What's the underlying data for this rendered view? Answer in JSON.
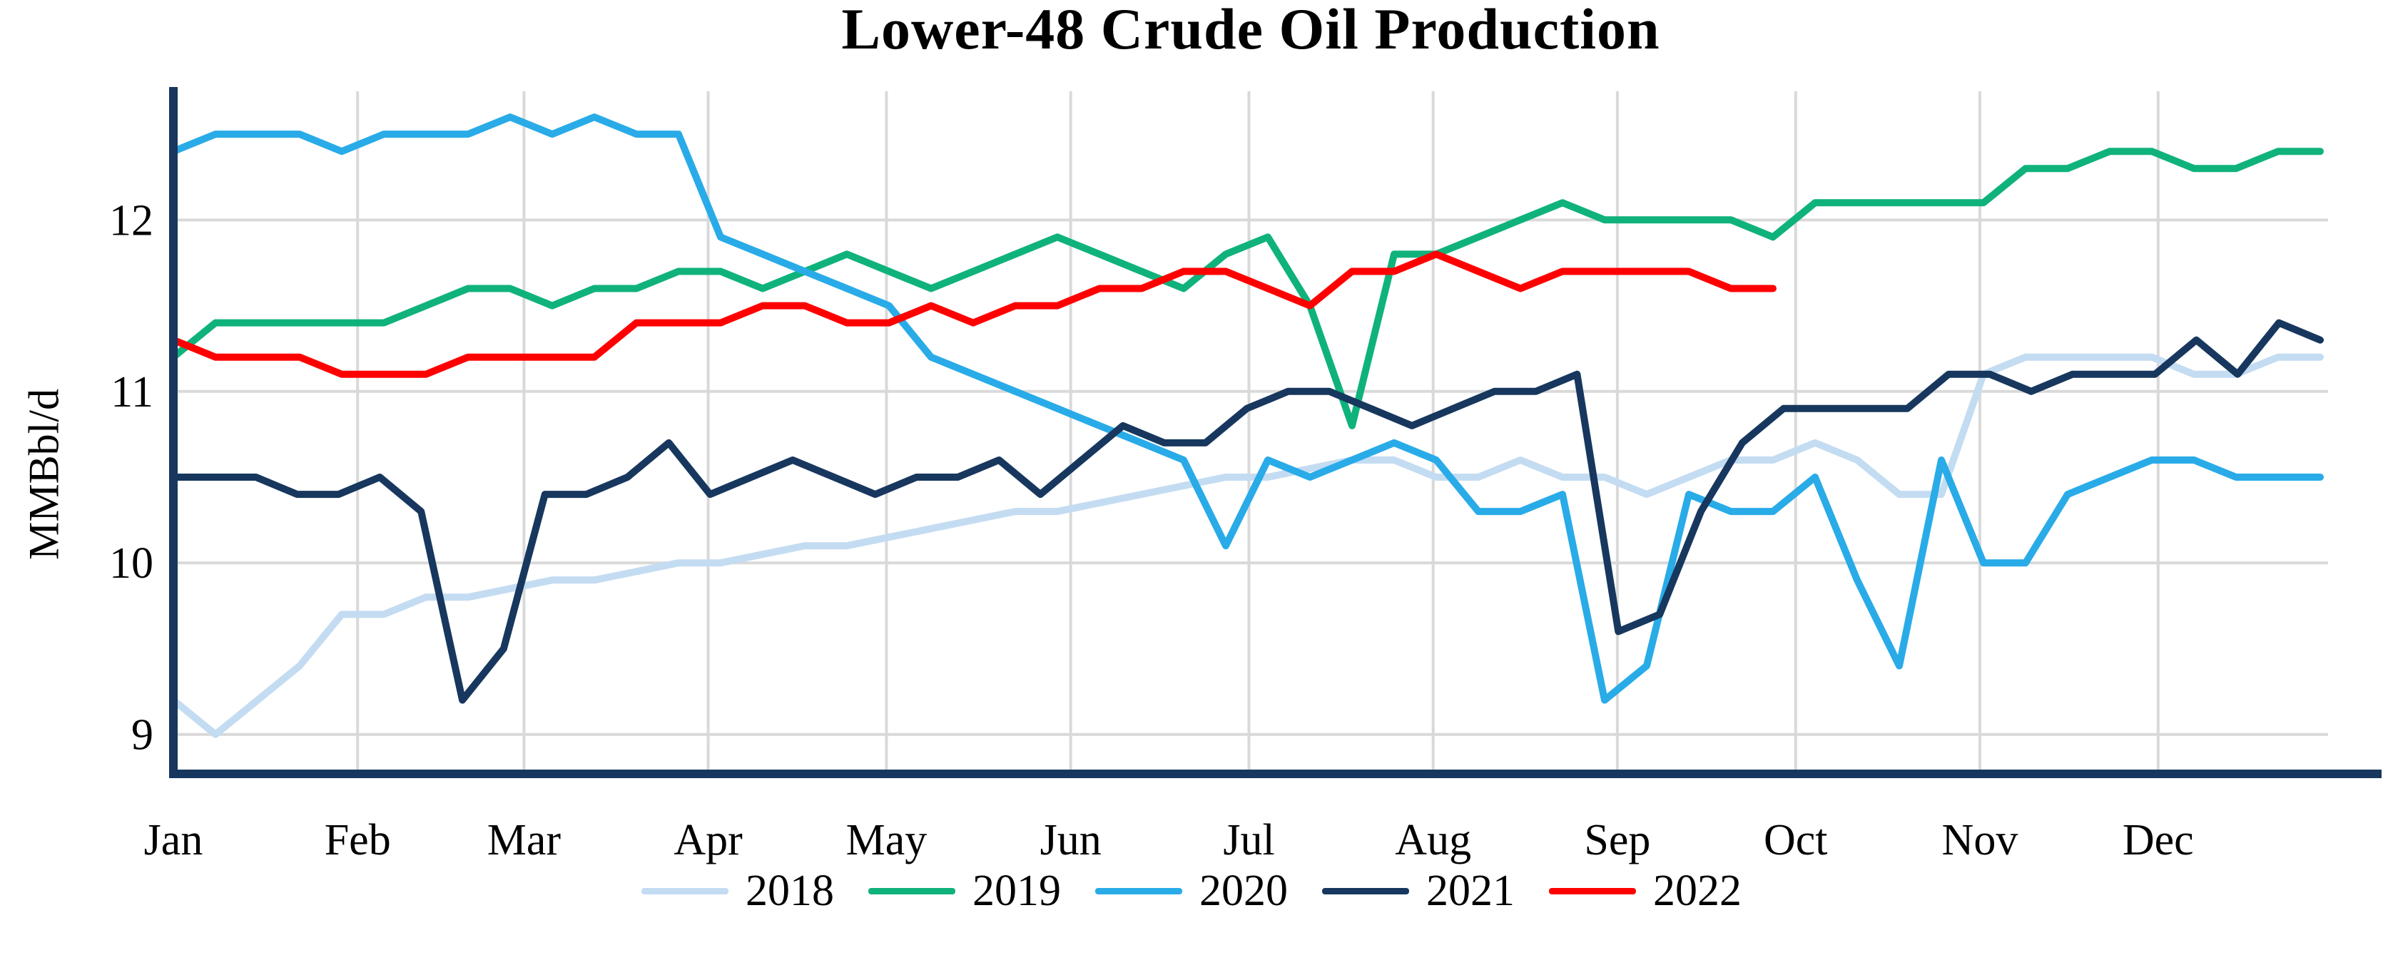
{
  "title": "Lower-48 Crude Oil Production",
  "y_axis": {
    "label": "MMBbl/d",
    "tick_labels": [
      "9",
      "10",
      "11",
      "12"
    ]
  },
  "x_axis": {
    "month_labels": [
      "Jan",
      "Feb",
      "Mar",
      "Apr",
      "May",
      "Jun",
      "Jul",
      "Aug",
      "Sep",
      "Oct",
      "Nov",
      "Dec"
    ]
  },
  "legend": {
    "entries": [
      "2018",
      "2019",
      "2020",
      "2021",
      "2022"
    ]
  },
  "colors": {
    "grid": "#D9D9D9",
    "axis": "#17375E",
    "series_2018": "#C3DCF2",
    "series_2019": "#10B27C",
    "series_2020": "#29ABE8",
    "series_2021": "#17375E",
    "series_2022": "#FF0000"
  },
  "chart_data": {
    "type": "line",
    "title": "Lower-48 Crude Oil Production",
    "xlabel": "",
    "ylabel": "MMBbl/d",
    "x_unit": "week-of-year (weekly data, Jan-Dec)",
    "ylim": [
      8.77,
      12.75
    ],
    "yticks": [
      9,
      10,
      11,
      12
    ],
    "x_months": [
      "Jan",
      "Feb",
      "Mar",
      "Apr",
      "May",
      "Jun",
      "Jul",
      "Aug",
      "Sep",
      "Oct",
      "Nov",
      "Dec"
    ],
    "grid": true,
    "legend_position": "bottom",
    "series": [
      {
        "name": "2018",
        "color": "#C3DCF2",
        "year_weeks": 52,
        "values": [
          9.2,
          9.0,
          9.2,
          9.4,
          9.7,
          9.7,
          9.8,
          9.8,
          9.85,
          9.9,
          9.9,
          9.95,
          10.0,
          10.0,
          10.05,
          10.1,
          10.1,
          10.15,
          10.2,
          10.25,
          10.3,
          10.3,
          10.35,
          10.4,
          10.45,
          10.5,
          10.5,
          10.55,
          10.6,
          10.6,
          10.5,
          10.5,
          10.6,
          10.5,
          10.5,
          10.4,
          10.5,
          10.6,
          10.6,
          10.7,
          10.6,
          10.4,
          10.4,
          11.1,
          11.2,
          11.2,
          11.2,
          11.2,
          11.1,
          11.1,
          11.2,
          11.2
        ]
      },
      {
        "name": "2019",
        "color": "#10B27C",
        "year_weeks": 52,
        "values": [
          11.2,
          11.4,
          11.4,
          11.4,
          11.4,
          11.4,
          11.5,
          11.6,
          11.6,
          11.5,
          11.6,
          11.6,
          11.7,
          11.7,
          11.6,
          11.7,
          11.8,
          11.7,
          11.6,
          11.7,
          11.8,
          11.9,
          11.8,
          11.7,
          11.6,
          11.8,
          11.9,
          11.5,
          10.8,
          11.8,
          11.8,
          11.9,
          12.0,
          12.1,
          12.0,
          12.0,
          12.0,
          12.0,
          11.9,
          12.1,
          12.1,
          12.1,
          12.1,
          12.1,
          12.3,
          12.3,
          12.4,
          12.4,
          12.3,
          12.3,
          12.4,
          12.4
        ]
      },
      {
        "name": "2020",
        "color": "#29ABE8",
        "year_weeks": 52,
        "values": [
          12.4,
          12.5,
          12.5,
          12.5,
          12.4,
          12.5,
          12.5,
          12.5,
          12.6,
          12.5,
          12.6,
          12.5,
          12.5,
          11.9,
          11.8,
          11.7,
          11.6,
          11.5,
          11.2,
          11.1,
          11.0,
          10.9,
          10.8,
          10.7,
          10.6,
          10.1,
          10.6,
          10.5,
          10.6,
          10.7,
          10.6,
          10.3,
          10.3,
          10.4,
          9.2,
          9.4,
          10.4,
          10.3,
          10.3,
          10.5,
          9.9,
          9.4,
          10.6,
          10.0,
          10.0,
          10.4,
          10.5,
          10.6,
          10.6,
          10.5,
          10.5,
          10.5
        ]
      },
      {
        "name": "2021",
        "color": "#17375E",
        "year_weeks": 53,
        "values": [
          10.5,
          10.5,
          10.5,
          10.4,
          10.4,
          10.5,
          10.3,
          9.2,
          9.5,
          10.4,
          10.4,
          10.5,
          10.7,
          10.4,
          10.5,
          10.6,
          10.5,
          10.4,
          10.5,
          10.5,
          10.6,
          10.4,
          10.6,
          10.8,
          10.7,
          10.7,
          10.9,
          11.0,
          11.0,
          10.9,
          10.8,
          10.9,
          11.0,
          11.0,
          11.1,
          9.6,
          9.7,
          10.3,
          10.7,
          10.9,
          10.9,
          10.9,
          10.9,
          11.1,
          11.1,
          11.0,
          11.1,
          11.1,
          11.1,
          11.3,
          11.1,
          11.4,
          11.3
        ]
      },
      {
        "name": "2022",
        "color": "#FF0000",
        "year_weeks": 52,
        "values": [
          11.3,
          11.2,
          11.2,
          11.2,
          11.1,
          11.1,
          11.1,
          11.2,
          11.2,
          11.2,
          11.2,
          11.4,
          11.4,
          11.4,
          11.5,
          11.5,
          11.4,
          11.4,
          11.5,
          11.4,
          11.5,
          11.5,
          11.6,
          11.6,
          11.7,
          11.7,
          11.6,
          11.5,
          11.7,
          11.7,
          11.8,
          11.7,
          11.6,
          11.7,
          11.7,
          11.7,
          11.7,
          11.6,
          11.6
        ]
      }
    ]
  }
}
